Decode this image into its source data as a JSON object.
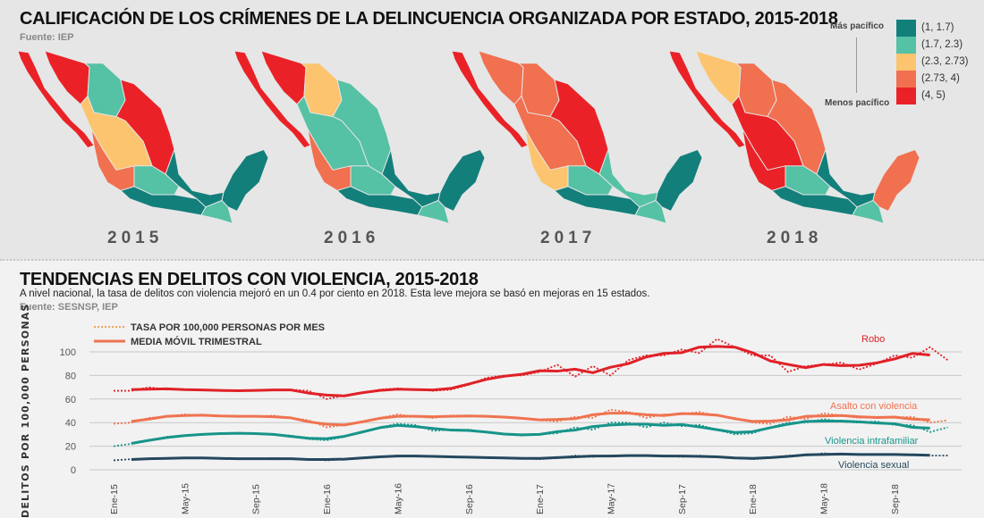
{
  "maps": {
    "title": "CALIFICACIÓN DE LOS CRÍMENES DE LA DELINCUENCIA ORGANIZADA POR ESTADO, 2015-2018",
    "source": "Fuente: IEP",
    "legend": {
      "top_label": "Más pacífico",
      "bottom_label": "Menos pacífico",
      "items": [
        {
          "label": "(1, 1.7)",
          "color": "#137f7b"
        },
        {
          "label": "(1.7, 2.3)",
          "color": "#55c1a5"
        },
        {
          "label": "(2.3, 2.73)",
          "color": "#fcc46e"
        },
        {
          "label": "(2.73, 4)",
          "color": "#f1704f"
        },
        {
          "label": "(4, 5)",
          "color": "#ea2227"
        }
      ]
    },
    "years": [
      {
        "label": "2015",
        "region_class": {
          "baja": 4,
          "sonora": 4,
          "chihuahua": 1,
          "northeast": 4,
          "center_north": 2,
          "west": 3,
          "center": 1,
          "south": 0,
          "gulf": 0,
          "chiapas": 1,
          "yucatan": 0
        }
      },
      {
        "label": "2016",
        "region_class": {
          "baja": 4,
          "sonora": 4,
          "chihuahua": 2,
          "northeast": 1,
          "center_north": 1,
          "west": 3,
          "center": 1,
          "south": 0,
          "gulf": 0,
          "chiapas": 1,
          "yucatan": 0
        }
      },
      {
        "label": "2017",
        "region_class": {
          "baja": 4,
          "sonora": 3,
          "chihuahua": 3,
          "northeast": 4,
          "center_north": 3,
          "west": 2,
          "center": 1,
          "south": 0,
          "gulf": 1,
          "chiapas": 1,
          "yucatan": 0
        }
      },
      {
        "label": "2018",
        "region_class": {
          "baja": 4,
          "sonora": 2,
          "chihuahua": 3,
          "northeast": 3,
          "center_north": 4,
          "west": 4,
          "center": 1,
          "south": 0,
          "gulf": 0,
          "chiapas": 1,
          "yucatan": 3
        }
      }
    ]
  },
  "trends": {
    "title": "TENDENCIAS EN DELITOS CON VIOLENCIA, 2015-2018",
    "subtitle": "A nivel nacional, la tasa de delitos con violencia mejoró en un 0.4 por ciento en 2018. Esta leve mejora se basó en mejoras en 15 estados.",
    "source": "Fuente: SESNSP, IEP"
  },
  "chart_data": {
    "type": "line",
    "ylabel": "DELITOS POR 100,000 PERSONAS",
    "ylim": [
      0,
      110
    ],
    "yticks": [
      0,
      20,
      40,
      60,
      80,
      100
    ],
    "grid": true,
    "legend_placement": "top-left",
    "legend": [
      {
        "label": "TASA POR 100,000 PERSONAS POR MES",
        "style": "dotted"
      },
      {
        "label": "MEDIA MÓVIL TRIMESTRAL",
        "style": "solid"
      }
    ],
    "x_start": "2015-01",
    "x_months": 48,
    "xtick_labels": [
      "Ene-15",
      "May-15",
      "Sep-15",
      "Ene-16",
      "May-16",
      "Sep-16",
      "Ene-17",
      "May-17",
      "Sep-17",
      "Ene-18",
      "May-18",
      "Sep-18"
    ],
    "series": [
      {
        "name": "Robo",
        "color": "#e02128",
        "values": [
          67,
          67,
          70,
          68,
          68,
          68,
          67,
          67,
          67,
          68,
          68,
          67,
          60,
          63,
          65,
          68,
          69,
          68,
          67,
          68,
          72,
          78,
          80,
          80,
          83,
          89,
          79,
          88,
          80,
          93,
          97,
          97,
          102,
          99,
          111,
          104,
          97,
          97,
          83,
          88,
          89,
          91,
          85,
          90,
          97,
          95,
          104,
          93
        ]
      },
      {
        "name": "Asalto con violencia",
        "color": "#ef7350",
        "values": [
          39,
          40,
          44,
          45,
          47,
          46,
          46,
          45,
          45,
          46,
          44,
          42,
          36,
          38,
          40,
          44,
          47,
          45,
          44,
          46,
          46,
          45,
          45,
          44,
          42,
          41,
          45,
          44,
          51,
          49,
          44,
          47,
          47,
          49,
          46,
          44,
          40,
          39,
          45,
          43,
          48,
          46,
          44,
          45,
          44,
          45,
          40,
          42
        ]
      },
      {
        "name": "Violencia intrafamiliar",
        "color": "#17948a",
        "values": [
          20,
          22,
          25,
          28,
          29,
          30,
          31,
          31,
          31,
          30,
          29,
          26,
          25,
          28,
          32,
          36,
          39,
          38,
          33,
          34,
          34,
          32,
          30,
          29,
          30,
          31,
          36,
          34,
          40,
          40,
          36,
          40,
          37,
          38,
          34,
          30,
          31,
          36,
          40,
          40,
          43,
          41,
          40,
          41,
          38,
          38,
          32,
          36
        ]
      },
      {
        "name": "Violencia sexual",
        "color": "#24485e",
        "values": [
          8,
          9,
          9,
          10,
          10,
          10,
          10,
          9,
          9,
          10,
          9,
          9,
          8,
          9,
          10,
          11,
          12,
          12,
          11,
          11,
          11,
          10,
          10,
          10,
          9,
          10,
          12,
          11,
          12,
          12,
          12,
          12,
          11,
          12,
          11,
          10,
          9,
          10,
          12,
          12,
          14,
          13,
          13,
          13,
          13,
          13,
          12,
          12
        ]
      }
    ]
  }
}
